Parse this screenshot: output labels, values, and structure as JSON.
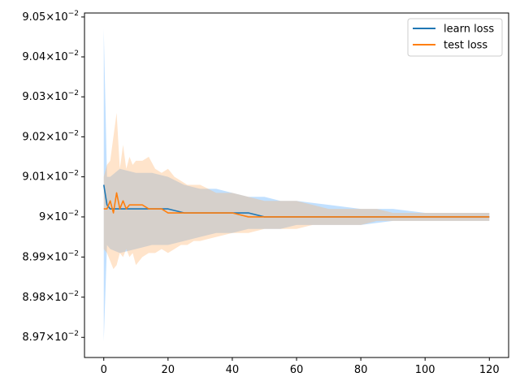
{
  "chart_data": {
    "type": "line",
    "title": "",
    "xlabel": "",
    "ylabel": "",
    "xlim": [
      -6,
      126
    ],
    "ylim": [
      0.08965,
      0.09051
    ],
    "y_scale": "log",
    "grid": false,
    "legend_position": "top-right",
    "x_ticks": [
      0,
      20,
      40,
      60,
      80,
      100,
      120
    ],
    "x_tick_labels": [
      "0",
      "20",
      "40",
      "60",
      "80",
      "100",
      "120"
    ],
    "y_ticks": [
      0.0897,
      0.0898,
      0.0899,
      0.09,
      0.0901,
      0.0902,
      0.0903,
      0.0904,
      0.0905
    ],
    "y_tick_labels": [
      {
        "mantissa": "8.97",
        "base": "10",
        "exp": "−2"
      },
      {
        "mantissa": "8.98",
        "base": "10",
        "exp": "−2"
      },
      {
        "mantissa": "8.99",
        "base": "10",
        "exp": "−2"
      },
      {
        "mantissa": "9",
        "base": "10",
        "exp": "−2"
      },
      {
        "mantissa": "9.01",
        "base": "10",
        "exp": "−2"
      },
      {
        "mantissa": "9.02",
        "base": "10",
        "exp": "−2"
      },
      {
        "mantissa": "9.03",
        "base": "10",
        "exp": "−2"
      },
      {
        "mantissa": "9.04",
        "base": "10",
        "exp": "−2"
      },
      {
        "mantissa": "9.05",
        "base": "10",
        "exp": "−2"
      }
    ],
    "series": [
      {
        "name": "learn loss",
        "color": "#1f77b4",
        "band_color": "#4da6ff",
        "band_opacity": 0.35,
        "x": [
          0,
          1,
          2,
          5,
          10,
          15,
          20,
          25,
          30,
          35,
          40,
          45,
          50,
          55,
          60,
          70,
          80,
          90,
          100,
          110,
          120
        ],
        "y": [
          0.09008,
          0.09003,
          0.09002,
          0.09002,
          0.09002,
          0.09002,
          0.09002,
          0.09001,
          0.09001,
          0.09001,
          0.09001,
          0.09001,
          0.09,
          0.09,
          0.09,
          0.09,
          0.09,
          0.09,
          0.09,
          0.09,
          0.09
        ],
        "upper": [
          0.09047,
          0.0901,
          0.0901,
          0.09012,
          0.09011,
          0.09011,
          0.0901,
          0.09008,
          0.09007,
          0.09007,
          0.09006,
          0.09005,
          0.09005,
          0.09004,
          0.09004,
          0.09003,
          0.09002,
          0.09002,
          0.09001,
          0.09001,
          0.09001
        ],
        "lower": [
          0.08969,
          0.08993,
          0.08992,
          0.08991,
          0.08992,
          0.08993,
          0.08993,
          0.08994,
          0.08995,
          0.08996,
          0.08996,
          0.08997,
          0.08997,
          0.08997,
          0.08998,
          0.08998,
          0.08998,
          0.08999,
          0.08999,
          0.08999,
          0.08999
        ]
      },
      {
        "name": "test loss",
        "color": "#ff7f0e",
        "band_color": "#ffb26b",
        "band_opacity": 0.35,
        "x": [
          0,
          1,
          2,
          3,
          4,
          5,
          6,
          7,
          8,
          9,
          10,
          12,
          14,
          16,
          18,
          20,
          22,
          24,
          26,
          28,
          30,
          35,
          40,
          45,
          50,
          55,
          60,
          65,
          70,
          75,
          80,
          85,
          90,
          95,
          100,
          105,
          110,
          115,
          120
        ],
        "y": [
          0.09002,
          0.09002,
          0.09004,
          0.09001,
          0.09006,
          0.09002,
          0.09004,
          0.09002,
          0.09003,
          0.09003,
          0.09003,
          0.09003,
          0.09002,
          0.09002,
          0.09002,
          0.09001,
          0.09001,
          0.09001,
          0.09001,
          0.09001,
          0.09001,
          0.09001,
          0.09001,
          0.09,
          0.09,
          0.09,
          0.09,
          0.09,
          0.09,
          0.09,
          0.09,
          0.09,
          0.09,
          0.09,
          0.09,
          0.09,
          0.09,
          0.09,
          0.09
        ],
        "upper": [
          0.0901,
          0.09013,
          0.09014,
          0.0902,
          0.09026,
          0.09012,
          0.09018,
          0.09012,
          0.09015,
          0.09013,
          0.09014,
          0.09014,
          0.09015,
          0.09012,
          0.09011,
          0.09012,
          0.0901,
          0.09009,
          0.09008,
          0.09008,
          0.09008,
          0.09006,
          0.09006,
          0.09005,
          0.09004,
          0.09004,
          0.09004,
          0.09003,
          0.09002,
          0.09002,
          0.09002,
          0.09002,
          0.09001,
          0.09001,
          0.09001,
          0.09001,
          0.09001,
          0.09001,
          0.09001
        ],
        "lower": [
          0.08992,
          0.08991,
          0.08989,
          0.08987,
          0.08988,
          0.08991,
          0.0899,
          0.08992,
          0.0899,
          0.08991,
          0.08988,
          0.0899,
          0.08991,
          0.08991,
          0.08992,
          0.08991,
          0.08992,
          0.08993,
          0.08993,
          0.08994,
          0.08994,
          0.08995,
          0.08996,
          0.08996,
          0.08997,
          0.08997,
          0.08997,
          0.08998,
          0.08998,
          0.08998,
          0.08998,
          0.08999,
          0.08999,
          0.08999,
          0.08999,
          0.08999,
          0.08999,
          0.08999,
          0.08999
        ]
      }
    ]
  }
}
